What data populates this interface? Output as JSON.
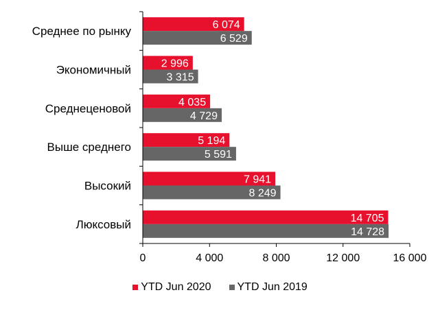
{
  "chart_data": {
    "type": "bar",
    "orientation": "horizontal",
    "categories": [
      "Среднее по рынку",
      "Экономичный",
      "Среднеценовой",
      "Выше среднего",
      "Высокий",
      "Люксовый"
    ],
    "series": [
      {
        "name": "YTD Jun 2020",
        "color": "#e8112d",
        "values": [
          6074,
          2996,
          4035,
          5194,
          7941,
          14705
        ],
        "labels": [
          "6 074",
          "2 996",
          "4 035",
          "5 194",
          "7 941",
          "14 705"
        ]
      },
      {
        "name": "YTD Jun 2019",
        "color": "#666666",
        "values": [
          6529,
          3315,
          4729,
          5591,
          8249,
          14728
        ],
        "labels": [
          "6 529",
          "3 315",
          "4 729",
          "5 591",
          "8 249",
          "14 728"
        ]
      }
    ],
    "xlim": [
      0,
      16000
    ],
    "xticks": [
      0,
      4000,
      8000,
      12000,
      16000
    ],
    "xtick_labels": [
      "0",
      "4 000",
      "8 000",
      "12 000",
      "16 000"
    ],
    "grid": false,
    "legend_position": "bottom"
  }
}
